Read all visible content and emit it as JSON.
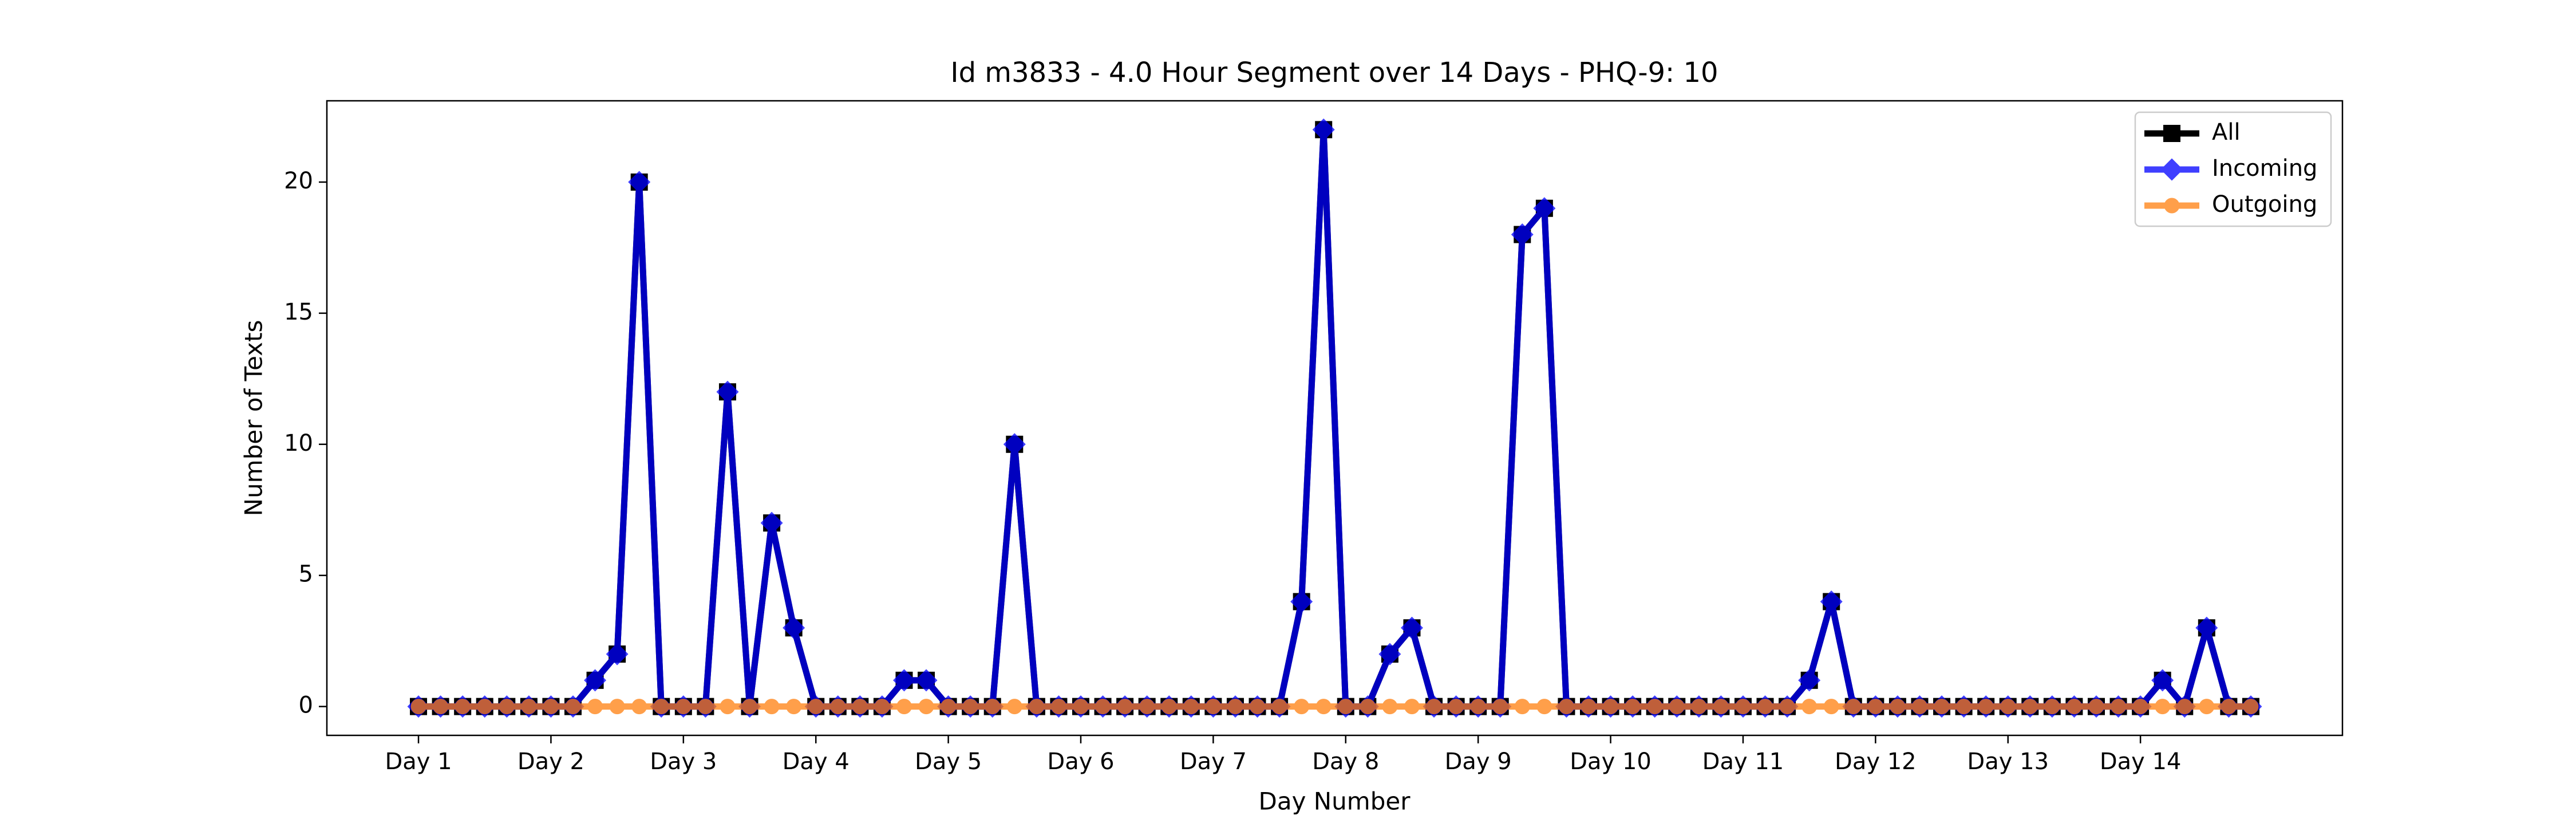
{
  "chart_data": {
    "type": "line",
    "title": "Id m3833 - 4.0 Hour Segment over 14 Days - PHQ-9: 10",
    "xlabel": "Day Number",
    "ylabel": "Number of Texts",
    "x": [
      0,
      1,
      2,
      3,
      4,
      5,
      6,
      7,
      8,
      9,
      10,
      11,
      12,
      13,
      14,
      15,
      16,
      17,
      18,
      19,
      20,
      21,
      22,
      23,
      24,
      25,
      26,
      27,
      28,
      29,
      30,
      31,
      32,
      33,
      34,
      35,
      36,
      37,
      38,
      39,
      40,
      41,
      42,
      43,
      44,
      45,
      46,
      47,
      48,
      49,
      50,
      51,
      52,
      53,
      54,
      55,
      56,
      57,
      58,
      59,
      60,
      61,
      62,
      63,
      64,
      65,
      66,
      67,
      68,
      69,
      70,
      71,
      72,
      73,
      74,
      75,
      76,
      77,
      78,
      79,
      80,
      81,
      82,
      83
    ],
    "series": [
      {
        "name": "All",
        "color": "#000000",
        "marker": "square",
        "values": [
          0,
          0,
          0,
          0,
          0,
          0,
          0,
          0,
          1,
          2,
          20,
          0,
          0,
          0,
          12,
          0,
          7,
          3,
          0,
          0,
          0,
          0,
          1,
          1,
          0,
          0,
          0,
          10,
          0,
          0,
          0,
          0,
          0,
          0,
          0,
          0,
          0,
          0,
          0,
          0,
          4,
          22,
          0,
          0,
          2,
          3,
          0,
          0,
          0,
          0,
          18,
          19,
          0,
          0,
          0,
          0,
          0,
          0,
          0,
          0,
          0,
          0,
          0,
          1,
          4,
          0,
          0,
          0,
          0,
          0,
          0,
          0,
          0,
          0,
          0,
          0,
          0,
          0,
          0,
          1,
          0,
          3,
          0,
          0
        ]
      },
      {
        "name": "Incoming",
        "color": "#0000ff",
        "marker": "diamond",
        "values": [
          0,
          0,
          0,
          0,
          0,
          0,
          0,
          0,
          1,
          2,
          20,
          0,
          0,
          0,
          12,
          0,
          7,
          3,
          0,
          0,
          0,
          0,
          1,
          1,
          0,
          0,
          0,
          10,
          0,
          0,
          0,
          0,
          0,
          0,
          0,
          0,
          0,
          0,
          0,
          0,
          4,
          22,
          0,
          0,
          2,
          3,
          0,
          0,
          0,
          0,
          18,
          19,
          0,
          0,
          0,
          0,
          0,
          0,
          0,
          0,
          0,
          0,
          0,
          1,
          4,
          0,
          0,
          0,
          0,
          0,
          0,
          0,
          0,
          0,
          0,
          0,
          0,
          0,
          0,
          1,
          0,
          3,
          0,
          0
        ]
      },
      {
        "name": "Outgoing",
        "color": "#ff7f0e",
        "marker": "circle",
        "values": [
          0,
          0,
          0,
          0,
          0,
          0,
          0,
          0,
          0,
          0,
          0,
          0,
          0,
          0,
          0,
          0,
          0,
          0,
          0,
          0,
          0,
          0,
          0,
          0,
          0,
          0,
          0,
          0,
          0,
          0,
          0,
          0,
          0,
          0,
          0,
          0,
          0,
          0,
          0,
          0,
          0,
          0,
          0,
          0,
          0,
          0,
          0,
          0,
          0,
          0,
          0,
          0,
          0,
          0,
          0,
          0,
          0,
          0,
          0,
          0,
          0,
          0,
          0,
          0,
          0,
          0,
          0,
          0,
          0,
          0,
          0,
          0,
          0,
          0,
          0,
          0,
          0,
          0,
          0,
          0,
          0,
          0,
          0,
          0
        ]
      }
    ],
    "xlim": [
      -4.15,
      87.15
    ],
    "xticks": [
      {
        "value": 0,
        "label": "Day 1"
      },
      {
        "value": 6,
        "label": "Day 2"
      },
      {
        "value": 12,
        "label": "Day 3"
      },
      {
        "value": 18,
        "label": "Day 4"
      },
      {
        "value": 24,
        "label": "Day 5"
      },
      {
        "value": 30,
        "label": "Day 6"
      },
      {
        "value": 36,
        "label": "Day 7"
      },
      {
        "value": 42,
        "label": "Day 8"
      },
      {
        "value": 48,
        "label": "Day 9"
      },
      {
        "value": 54,
        "label": "Day 10"
      },
      {
        "value": 60,
        "label": "Day 11"
      },
      {
        "value": 66,
        "label": "Day 12"
      },
      {
        "value": 72,
        "label": "Day 13"
      },
      {
        "value": 78,
        "label": "Day 14"
      }
    ],
    "ylim": [
      -1.1,
      23.1
    ],
    "yticks": [
      0,
      5,
      10,
      15,
      20
    ],
    "legend": "upper right"
  }
}
